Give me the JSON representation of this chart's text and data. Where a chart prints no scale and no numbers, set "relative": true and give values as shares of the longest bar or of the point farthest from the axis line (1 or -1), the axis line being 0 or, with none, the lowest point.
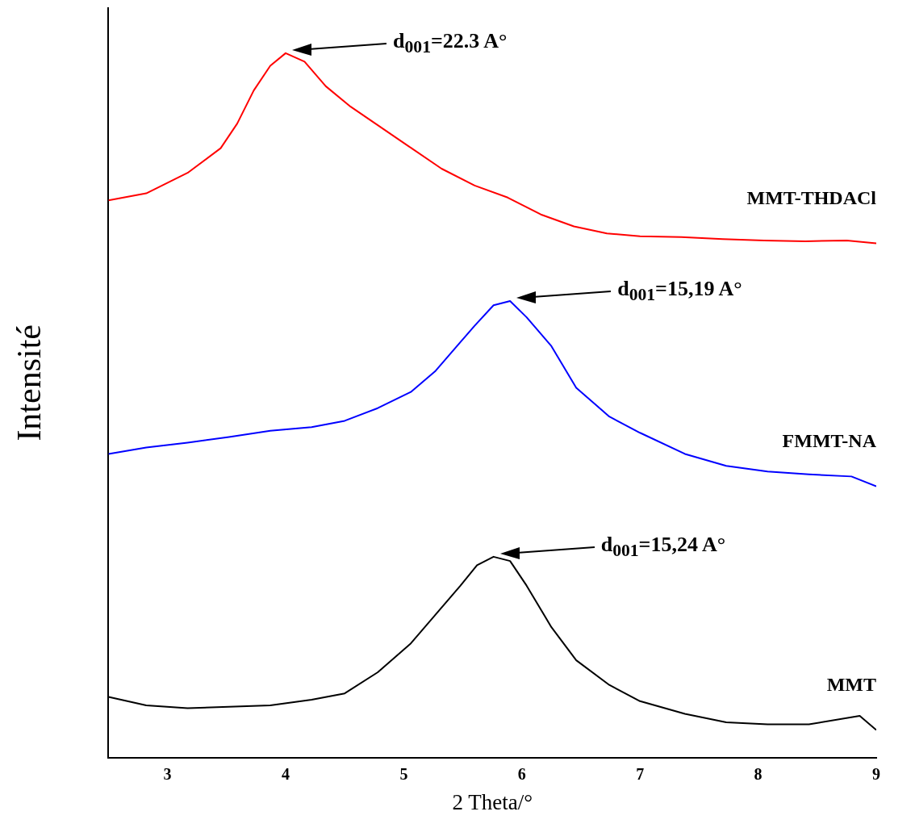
{
  "chart_data": {
    "type": "line",
    "xlabel": "2 Theta/°",
    "ylabel": "Intensité",
    "relative": true,
    "xlim": [
      2.5,
      9
    ],
    "xticks": [
      3,
      4,
      5,
      6,
      7,
      8,
      9
    ],
    "series": [
      {
        "name": "MMT-THDACl",
        "color": "#ff0000",
        "x": [
          2.5,
          2.82,
          3.17,
          3.45,
          3.59,
          3.73,
          3.87,
          4.0,
          4.16,
          4.34,
          4.55,
          4.76,
          5.04,
          5.32,
          5.6,
          5.88,
          6.16,
          6.44,
          6.72,
          7.0,
          7.35,
          7.7,
          8.05,
          8.4,
          8.75,
          9.0
        ],
        "values": [
          0.791,
          0.801,
          0.83,
          0.865,
          0.9,
          0.947,
          0.982,
          1.0,
          0.988,
          0.953,
          0.924,
          0.9,
          0.868,
          0.836,
          0.812,
          0.795,
          0.771,
          0.754,
          0.744,
          0.74,
          0.739,
          0.736,
          0.734,
          0.733,
          0.734,
          0.73
        ]
      },
      {
        "name": "FMMT-NA",
        "color": "#0000ff",
        "x": [
          2.5,
          2.82,
          3.17,
          3.52,
          3.87,
          4.22,
          4.5,
          4.78,
          5.06,
          5.27,
          5.45,
          5.6,
          5.76,
          5.9,
          6.04,
          6.25,
          6.46,
          6.74,
          7.0,
          7.38,
          7.73,
          8.08,
          8.43,
          8.79,
          9.0
        ],
        "values": [
          0.431,
          0.44,
          0.447,
          0.455,
          0.464,
          0.469,
          0.478,
          0.496,
          0.519,
          0.549,
          0.584,
          0.613,
          0.642,
          0.648,
          0.625,
          0.584,
          0.525,
          0.484,
          0.461,
          0.431,
          0.414,
          0.406,
          0.402,
          0.399,
          0.385
        ]
      },
      {
        "name": "MMT",
        "color": "#000000",
        "x": [
          2.5,
          2.82,
          3.17,
          3.52,
          3.87,
          4.22,
          4.5,
          4.78,
          5.06,
          5.27,
          5.48,
          5.62,
          5.76,
          5.9,
          6.04,
          6.25,
          6.46,
          6.74,
          7.0,
          7.38,
          7.73,
          8.08,
          8.43,
          8.86,
          9.0
        ],
        "values": [
          0.086,
          0.074,
          0.07,
          0.072,
          0.074,
          0.082,
          0.091,
          0.121,
          0.162,
          0.203,
          0.244,
          0.273,
          0.285,
          0.279,
          0.244,
          0.185,
          0.138,
          0.103,
          0.08,
          0.062,
          0.05,
          0.047,
          0.047,
          0.059,
          0.039
        ]
      }
    ],
    "annotations": [
      "d$_{001}$=22.3 A°",
      "d$_{001}$=15,19 A°",
      "d$_{001}$=15,24 A°"
    ]
  }
}
